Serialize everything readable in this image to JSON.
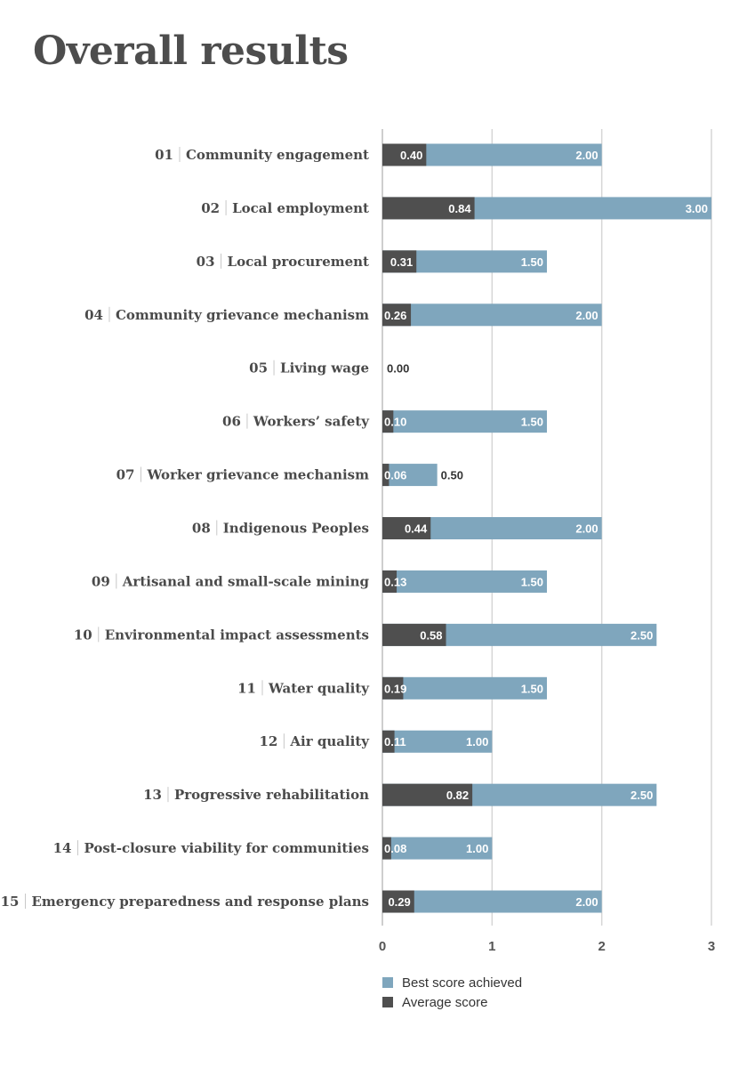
{
  "page": {
    "title": "Overall results"
  },
  "colors": {
    "best": "#7fa6bd",
    "average": "#4f4f4f",
    "grid": "#d6d6d6"
  },
  "chart_data": {
    "type": "bar",
    "orientation": "horizontal",
    "stacking": "overlay",
    "categories": [
      {
        "num": "01",
        "label": "Community engagement"
      },
      {
        "num": "02",
        "label": "Local employment"
      },
      {
        "num": "03",
        "label": "Local procurement"
      },
      {
        "num": "04",
        "label": "Community grievance mechanism"
      },
      {
        "num": "05",
        "label": "Living wage"
      },
      {
        "num": "06",
        "label": "Workers’ safety"
      },
      {
        "num": "07",
        "label": "Worker grievance mechanism"
      },
      {
        "num": "08",
        "label": "Indigenous Peoples"
      },
      {
        "num": "09",
        "label": "Artisanal and small-scale mining"
      },
      {
        "num": "10",
        "label": "Environmental impact assessments"
      },
      {
        "num": "11",
        "label": "Water quality"
      },
      {
        "num": "12",
        "label": "Air quality"
      },
      {
        "num": "13",
        "label": "Progressive rehabilitation"
      },
      {
        "num": "14",
        "label": "Post-closure viability for communities"
      },
      {
        "num": "15",
        "label": "Emergency preparedness and response plans"
      }
    ],
    "series": [
      {
        "name": "Best score achieved",
        "values": [
          2.0,
          3.0,
          1.5,
          2.0,
          0.0,
          1.5,
          0.5,
          2.0,
          1.5,
          2.5,
          1.5,
          1.0,
          2.5,
          1.0,
          2.0
        ]
      },
      {
        "name": "Average score",
        "values": [
          0.4,
          0.84,
          0.31,
          0.26,
          0.0,
          0.1,
          0.06,
          0.44,
          0.13,
          0.58,
          0.19,
          0.11,
          0.82,
          0.08,
          0.29
        ]
      }
    ],
    "xlim": [
      0,
      3
    ],
    "xticks": [
      "0",
      "1",
      "2",
      "3"
    ],
    "grid": true,
    "legend_position": "bottom"
  }
}
